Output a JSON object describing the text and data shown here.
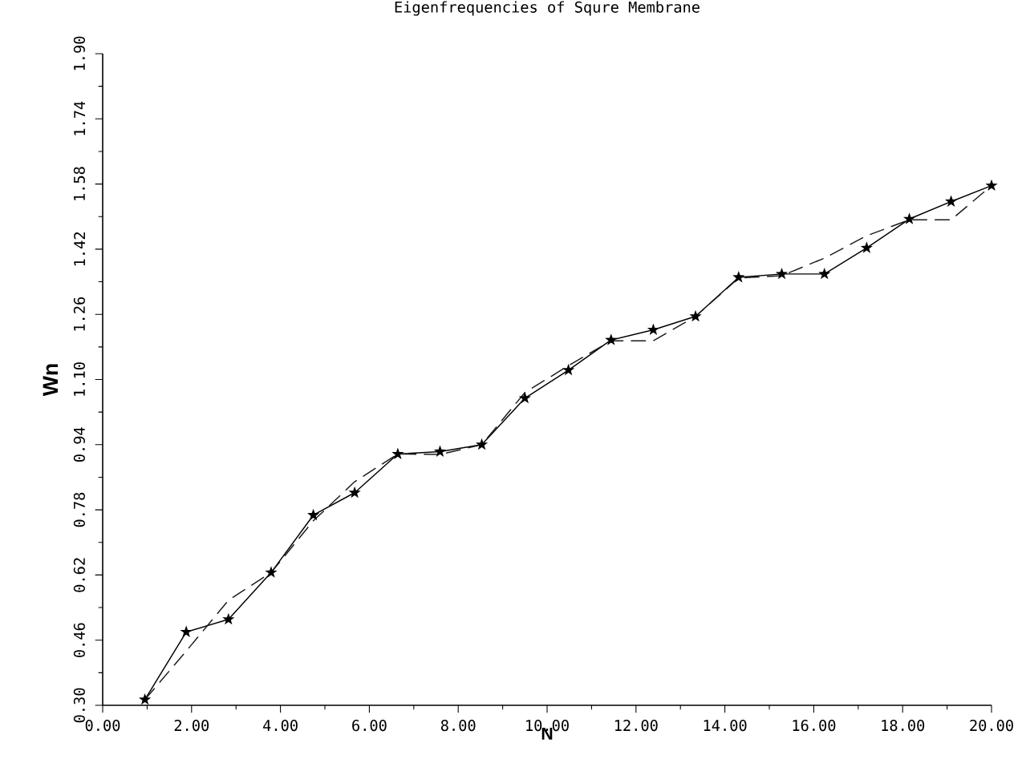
{
  "chart_data": {
    "type": "line",
    "title": "Eigenfrequencies of Squre Membrane",
    "xlabel": "N",
    "ylabel": "Wn",
    "xlim": [
      0,
      20
    ],
    "ylim": [
      0.3,
      1.9
    ],
    "xticks": [
      {
        "value": 0,
        "label": "0.00"
      },
      {
        "value": 2,
        "label": "2.00"
      },
      {
        "value": 4,
        "label": "4.00"
      },
      {
        "value": 6,
        "label": "6.00"
      },
      {
        "value": 8,
        "label": "8.00"
      },
      {
        "value": 10,
        "label": "10.00"
      },
      {
        "value": 12,
        "label": "12.00"
      },
      {
        "value": 14,
        "label": "14.00"
      },
      {
        "value": 16,
        "label": "16.00"
      },
      {
        "value": 18,
        "label": "18.00"
      },
      {
        "value": 20,
        "label": "20.00"
      }
    ],
    "yticks": [
      {
        "value": 0.3,
        "label": "0.30"
      },
      0.46,
      0.62,
      0.78,
      0.94,
      {
        "value": 1.1,
        "label": "1.10"
      },
      1.26,
      1.42,
      1.58,
      1.74,
      {
        "value": 1.9,
        "label": "1.90"
      }
    ],
    "grid": false,
    "series": [
      {
        "color": "#000000",
        "marker": "star",
        "line_style": "solid",
        "x": [
          0.95,
          1.88,
          2.83,
          3.79,
          4.74,
          5.67,
          6.64,
          7.59,
          8.53,
          9.5,
          10.48,
          11.44,
          12.39,
          13.34,
          14.31,
          15.28,
          16.24,
          17.19,
          18.15,
          19.09,
          20.0
        ],
        "values": [
          0.314,
          0.48,
          0.511,
          0.626,
          0.767,
          0.822,
          0.917,
          0.923,
          0.94,
          1.054,
          1.123,
          1.197,
          1.222,
          1.255,
          1.351,
          1.359,
          1.359,
          1.423,
          1.494,
          1.537,
          1.576
        ]
      },
      {
        "color": "#1a1a1a",
        "marker": "none",
        "line_style": "dashed",
        "x": [
          0.95,
          1.88,
          2.83,
          3.79,
          4.74,
          5.67,
          6.64,
          7.59,
          8.53,
          9.5,
          10.48,
          11.44,
          12.39,
          13.34,
          14.31,
          15.28,
          16.24,
          17.19,
          18.15,
          19.09,
          20.0
        ],
        "values": [
          0.314,
          0.433,
          0.558,
          0.626,
          0.753,
          0.849,
          0.917,
          0.916,
          0.94,
          1.068,
          1.134,
          1.195,
          1.195,
          1.255,
          1.349,
          1.355,
          1.398,
          1.453,
          1.492,
          1.492,
          1.576
        ]
      }
    ]
  }
}
